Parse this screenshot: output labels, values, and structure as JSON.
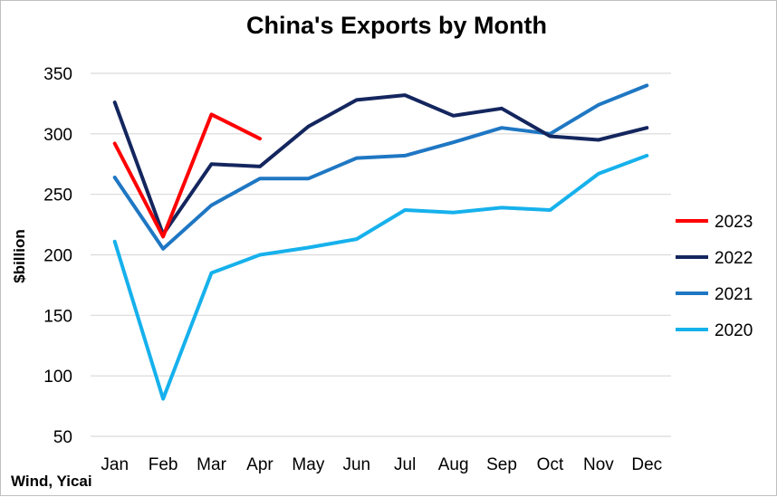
{
  "chart_data": {
    "type": "line",
    "title": "China's Exports by Month",
    "ylabel": "$billion",
    "xlabel": "",
    "source": "Wind, Yicai",
    "categories": [
      "Jan",
      "Feb",
      "Mar",
      "Apr",
      "May",
      "Jun",
      "Jul",
      "Aug",
      "Sep",
      "Oct",
      "Nov",
      "Dec"
    ],
    "ylim": [
      50,
      350
    ],
    "yticks": [
      50,
      100,
      150,
      200,
      250,
      300,
      350
    ],
    "grid": true,
    "legend_position": "right",
    "series": [
      {
        "name": "2023",
        "color": "#ff0000",
        "values": [
          292,
          215,
          316,
          296,
          null,
          null,
          null,
          null,
          null,
          null,
          null,
          null
        ]
      },
      {
        "name": "2022",
        "color": "#14265e",
        "values": [
          326,
          217,
          275,
          273,
          306,
          328,
          332,
          315,
          321,
          298,
          295,
          305
        ]
      },
      {
        "name": "2021",
        "color": "#1f77c3",
        "values": [
          264,
          205,
          241,
          263,
          263,
          280,
          282,
          293,
          305,
          300,
          324,
          340
        ]
      },
      {
        "name": "2020",
        "color": "#16b1ec",
        "values": [
          211,
          81,
          185,
          200,
          206,
          213,
          237,
          235,
          239,
          237,
          267,
          282
        ]
      }
    ]
  }
}
